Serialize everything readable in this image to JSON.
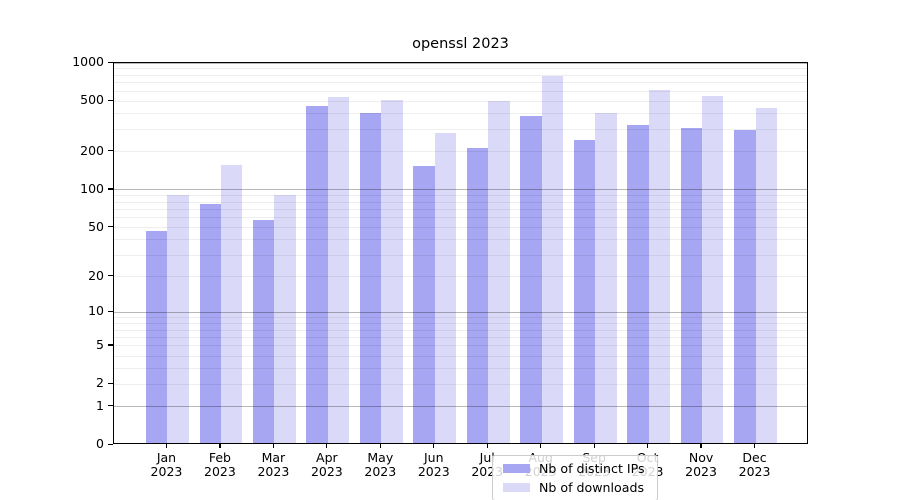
{
  "figure": {
    "title": "openssl 2023"
  },
  "chart_data": {
    "type": "bar",
    "title": "openssl 2023",
    "categories": [
      "Jan",
      "Feb",
      "Mar",
      "Apr",
      "May",
      "Jun",
      "Jul",
      "Aug",
      "Sep",
      "Oct",
      "Nov",
      "Dec"
    ],
    "x_year_line": "2023",
    "series": [
      {
        "name": "Nb of distinct IPs",
        "color": "#a6a6f2",
        "values": [
          45,
          74,
          55,
          445,
          390,
          148,
          207,
          370,
          240,
          315,
          298,
          288
        ]
      },
      {
        "name": "Nb of downloads",
        "color": "#dadaf8",
        "values": [
          88,
          152,
          87,
          520,
          492,
          270,
          483,
          760,
          388,
          592,
          530,
          430
        ]
      }
    ],
    "xlabel": "",
    "ylabel": "",
    "yscale": "log1p",
    "ylim": [
      0,
      1000
    ],
    "yticks": [
      0,
      1,
      2,
      5,
      10,
      20,
      50,
      100,
      200,
      500,
      1000
    ],
    "major_grid_values": [
      1,
      10,
      100,
      1000
    ],
    "grid": "both",
    "legend_position": "lower center"
  }
}
